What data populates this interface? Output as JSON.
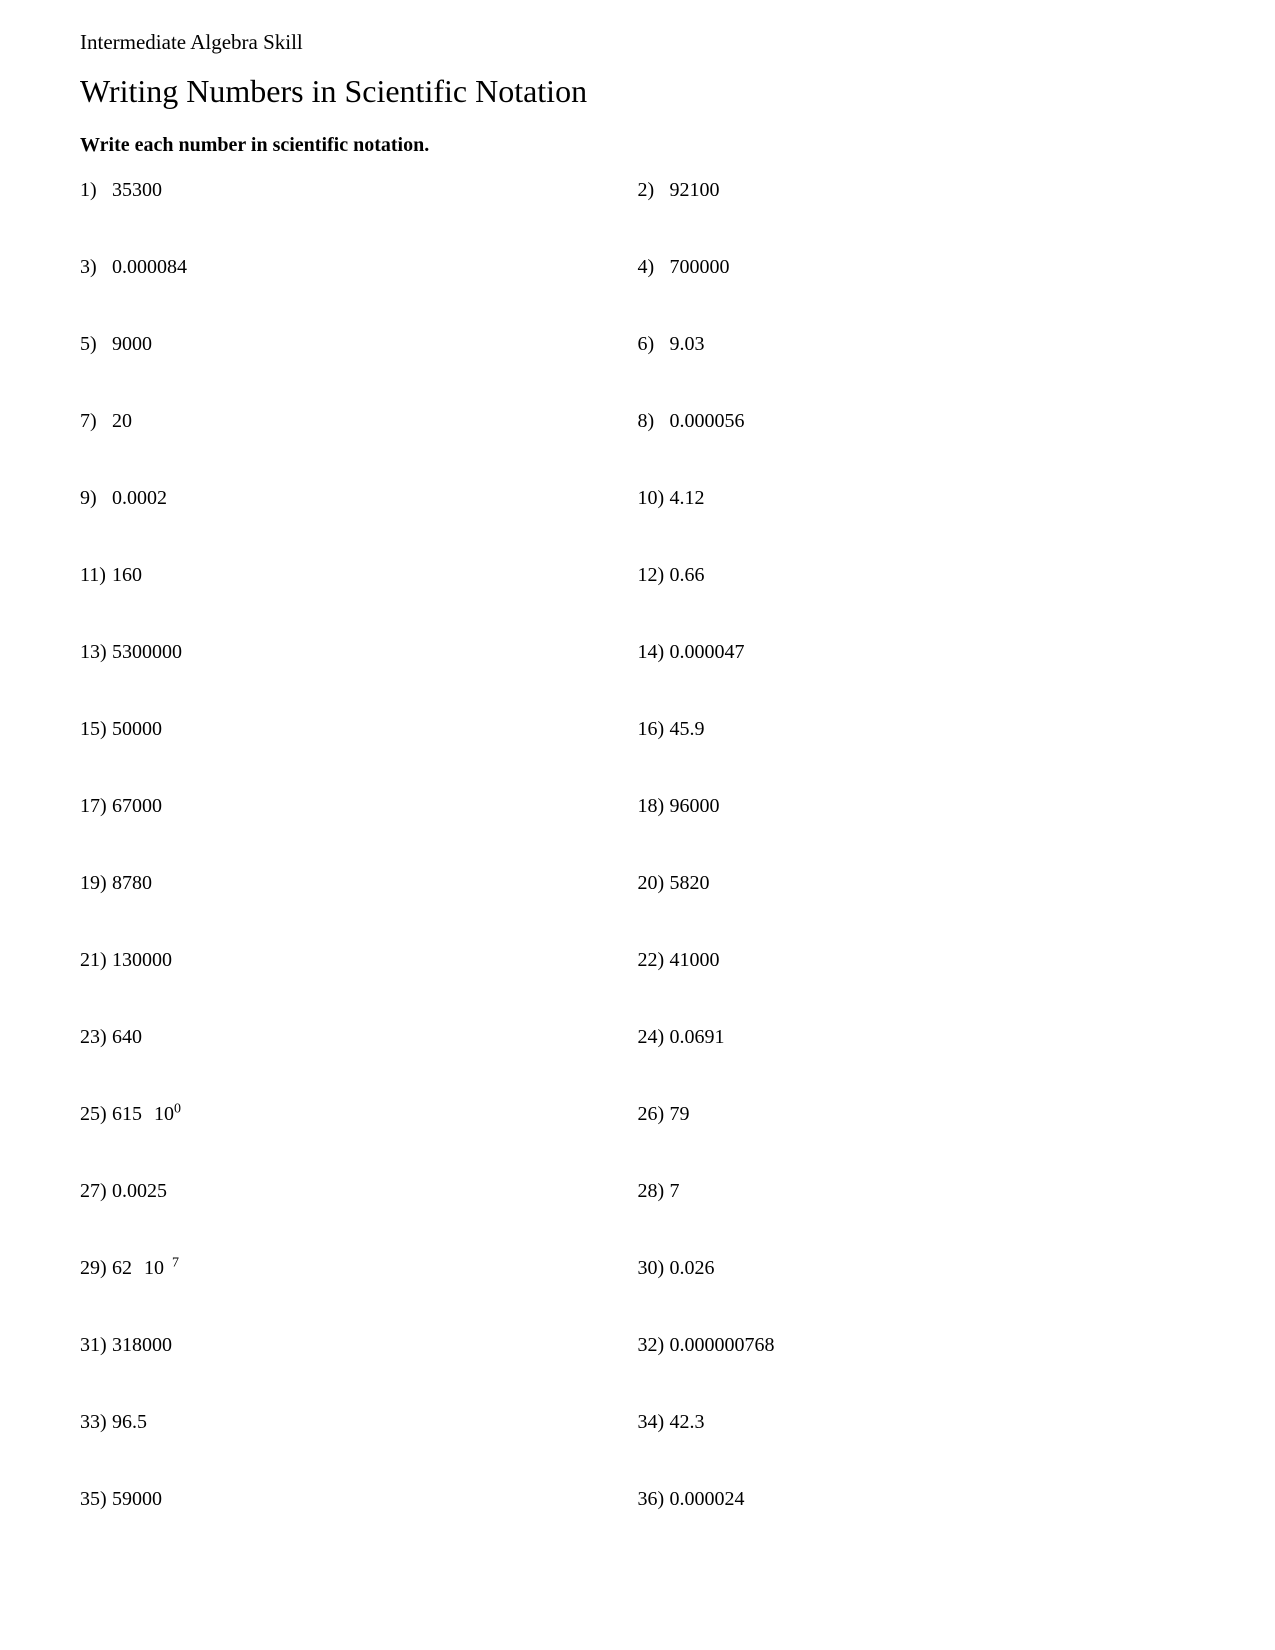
{
  "header_skill": "Intermediate Algebra Skill",
  "title": "Writing Numbers in Scientific Notation",
  "instructions": "Write each number in scientific notation.",
  "problems": [
    {
      "n": "1)",
      "v": "35300"
    },
    {
      "n": "2)",
      "v": "92100"
    },
    {
      "n": "3)",
      "v": "0.000084"
    },
    {
      "n": "4)",
      "v": "700000"
    },
    {
      "n": "5)",
      "v": "9000"
    },
    {
      "n": "6)",
      "v": "9.03"
    },
    {
      "n": "7)",
      "v": "20"
    },
    {
      "n": "8)",
      "v": "0.000056"
    },
    {
      "n": "9)",
      "v": "0.0002"
    },
    {
      "n": "10)",
      "v": "4.12"
    },
    {
      "n": "11)",
      "v": "160"
    },
    {
      "n": "12)",
      "v": "0.66"
    },
    {
      "n": "13)",
      "v": "5300000"
    },
    {
      "n": "14)",
      "v": "0.000047"
    },
    {
      "n": "15)",
      "v": "50000"
    },
    {
      "n": "16)",
      "v": "45.9"
    },
    {
      "n": "17)",
      "v": "67000"
    },
    {
      "n": "18)",
      "v": "96000"
    },
    {
      "n": "19)",
      "v": "8780"
    },
    {
      "n": "20)",
      "v": "5820"
    },
    {
      "n": "21)",
      "v": "130000"
    },
    {
      "n": "22)",
      "v": "41000"
    },
    {
      "n": "23)",
      "v": "640"
    },
    {
      "n": "24)",
      "v": "0.0691"
    },
    {
      "n": "25)",
      "v": "615",
      "base": "10",
      "exp": "0"
    },
    {
      "n": "26)",
      "v": "79"
    },
    {
      "n": "27)",
      "v": "0.0025"
    },
    {
      "n": "28)",
      "v": "7"
    },
    {
      "n": "29)",
      "v": "62",
      "base": "10",
      "exp": "7",
      "neg": true
    },
    {
      "n": "30)",
      "v": "0.026"
    },
    {
      "n": "31)",
      "v": "318000"
    },
    {
      "n": "32)",
      "v": "0.000000768"
    },
    {
      "n": "33)",
      "v": "96.5"
    },
    {
      "n": "34)",
      "v": "42.3"
    },
    {
      "n": "35)",
      "v": "59000"
    },
    {
      "n": "36)",
      "v": "0.000024"
    }
  ]
}
